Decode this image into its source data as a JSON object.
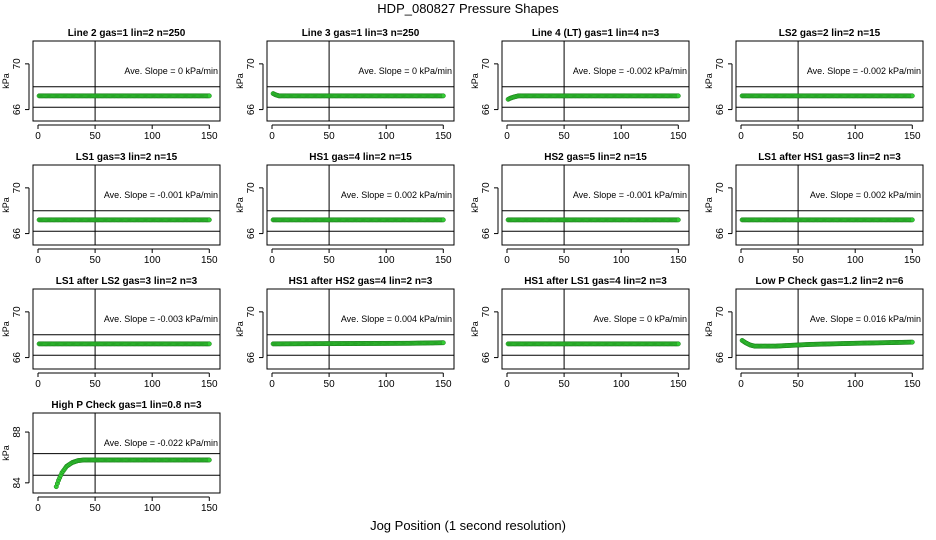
{
  "figure": {
    "title": "HDP_080827  Pressure Shapes",
    "xlabel": "Jog Position (1 second resolution)"
  },
  "chart_data": [
    {
      "type": "scatter",
      "title": "Line 2 gas=1 lin=2 n=250",
      "slope_label": "Ave. Slope =",
      "slope_value": "0",
      "slope_unit": "kPa/min",
      "ylabel": "kPa",
      "xlim": [
        0,
        155
      ],
      "ylim": [
        65,
        72
      ],
      "xticks": [
        "0",
        "50",
        "100",
        "150"
      ],
      "yticks": [
        "66",
        "70"
      ],
      "hlines": [
        68.0,
        66.2
      ],
      "vline": 50,
      "color": "#33cc33",
      "points": [
        [
          1,
          67.2
        ],
        [
          150,
          67.2
        ]
      ]
    },
    {
      "type": "scatter",
      "title": "Line 3 gas=1 lin=3 n=250",
      "slope_label": "Ave. Slope =",
      "slope_value": "0",
      "slope_unit": "kPa/min",
      "ylabel": "kPa",
      "xlim": [
        0,
        155
      ],
      "ylim": [
        65,
        72
      ],
      "xticks": [
        "0",
        "50",
        "100",
        "150"
      ],
      "yticks": [
        "66",
        "70"
      ],
      "hlines": [
        68.0,
        66.2
      ],
      "vline": 50,
      "color": "#33cc33",
      "points": [
        [
          1,
          67.4
        ],
        [
          3,
          67.3
        ],
        [
          6,
          67.2
        ],
        [
          150,
          67.2
        ]
      ]
    },
    {
      "type": "scatter",
      "title": "Line 4 (LT) gas=1 lin=4 n=3",
      "slope_label": "Ave. Slope =",
      "slope_value": "-0.002",
      "slope_unit": "kPa/min",
      "ylabel": "kPa",
      "xlim": [
        0,
        155
      ],
      "ylim": [
        65,
        72
      ],
      "xticks": [
        "0",
        "50",
        "100",
        "150"
      ],
      "yticks": [
        "66",
        "70"
      ],
      "hlines": [
        68.0,
        66.2
      ],
      "vline": 50,
      "color": "#33cc33",
      "points": [
        [
          1,
          66.9
        ],
        [
          3,
          67.0
        ],
        [
          6,
          67.1
        ],
        [
          10,
          67.2
        ],
        [
          150,
          67.2
        ]
      ]
    },
    {
      "type": "scatter",
      "title": "LS2 gas=2 lin=2 n=15",
      "slope_label": "Ave. Slope =",
      "slope_value": "-0.002",
      "slope_unit": "kPa/min",
      "ylabel": "kPa",
      "xlim": [
        0,
        155
      ],
      "ylim": [
        65,
        72
      ],
      "xticks": [
        "0",
        "50",
        "100",
        "150"
      ],
      "yticks": [
        "66",
        "70"
      ],
      "hlines": [
        68.0,
        66.2
      ],
      "vline": 50,
      "color": "#33cc33",
      "points": [
        [
          1,
          67.2
        ],
        [
          150,
          67.2
        ]
      ]
    },
    {
      "type": "scatter",
      "title": "LS1 gas=3 lin=2 n=15",
      "slope_label": "Ave. Slope =",
      "slope_value": "-0.001",
      "slope_unit": "kPa/min",
      "ylabel": "kPa",
      "xlim": [
        0,
        155
      ],
      "ylim": [
        65,
        72
      ],
      "xticks": [
        "0",
        "50",
        "100",
        "150"
      ],
      "yticks": [
        "66",
        "70"
      ],
      "hlines": [
        68.0,
        66.2
      ],
      "vline": 50,
      "color": "#33cc33",
      "points": [
        [
          1,
          67.2
        ],
        [
          150,
          67.2
        ]
      ]
    },
    {
      "type": "scatter",
      "title": "HS1 gas=4 lin=2 n=15",
      "slope_label": "Ave. Slope =",
      "slope_value": "0.002",
      "slope_unit": "kPa/min",
      "ylabel": "kPa",
      "xlim": [
        0,
        155
      ],
      "ylim": [
        65,
        72
      ],
      "xticks": [
        "0",
        "50",
        "100",
        "150"
      ],
      "yticks": [
        "66",
        "70"
      ],
      "hlines": [
        68.0,
        66.2
      ],
      "vline": 50,
      "color": "#33cc33",
      "points": [
        [
          1,
          67.2
        ],
        [
          150,
          67.2
        ]
      ]
    },
    {
      "type": "scatter",
      "title": "HS2 gas=5 lin=2 n=15",
      "slope_label": "Ave. Slope =",
      "slope_value": "-0.001",
      "slope_unit": "kPa/min",
      "ylabel": "kPa",
      "xlim": [
        0,
        155
      ],
      "ylim": [
        65,
        72
      ],
      "xticks": [
        "0",
        "50",
        "100",
        "150"
      ],
      "yticks": [
        "66",
        "70"
      ],
      "hlines": [
        68.0,
        66.2
      ],
      "vline": 50,
      "color": "#33cc33",
      "points": [
        [
          1,
          67.2
        ],
        [
          150,
          67.2
        ]
      ]
    },
    {
      "type": "scatter",
      "title": "LS1 after HS1 gas=3 lin=2 n=3",
      "slope_label": "Ave. Slope =",
      "slope_value": "0.002",
      "slope_unit": "kPa/min",
      "ylabel": "kPa",
      "xlim": [
        0,
        155
      ],
      "ylim": [
        65,
        72
      ],
      "xticks": [
        "0",
        "50",
        "100",
        "150"
      ],
      "yticks": [
        "66",
        "70"
      ],
      "hlines": [
        68.0,
        66.2
      ],
      "vline": 50,
      "color": "#33cc33",
      "points": [
        [
          1,
          67.2
        ],
        [
          150,
          67.2
        ]
      ]
    },
    {
      "type": "scatter",
      "title": "LS1 after LS2 gas=3 lin=2 n=3",
      "slope_label": "Ave. Slope =",
      "slope_value": "-0.003",
      "slope_unit": "kPa/min",
      "ylabel": "kPa",
      "xlim": [
        0,
        155
      ],
      "ylim": [
        65,
        72
      ],
      "xticks": [
        "0",
        "50",
        "100",
        "150"
      ],
      "yticks": [
        "66",
        "70"
      ],
      "hlines": [
        68.0,
        66.2
      ],
      "vline": 50,
      "color": "#33cc33",
      "points": [
        [
          1,
          67.2
        ],
        [
          150,
          67.2
        ]
      ]
    },
    {
      "type": "scatter",
      "title": "HS1 after HS2 gas=4 lin=2 n=3",
      "slope_label": "Ave. Slope =",
      "slope_value": "0.004",
      "slope_unit": "kPa/min",
      "ylabel": "kPa",
      "xlim": [
        0,
        155
      ],
      "ylim": [
        65,
        72
      ],
      "xticks": [
        "0",
        "50",
        "100",
        "150"
      ],
      "yticks": [
        "66",
        "70"
      ],
      "hlines": [
        68.0,
        66.2
      ],
      "vline": 50,
      "color": "#33cc33",
      "points": [
        [
          1,
          67.2
        ],
        [
          120,
          67.25
        ],
        [
          150,
          67.3
        ]
      ]
    },
    {
      "type": "scatter",
      "title": "HS1 after LS1 gas=4 lin=2 n=3",
      "slope_label": "Ave. Slope =",
      "slope_value": "0",
      "slope_unit": "kPa/min",
      "ylabel": "kPa",
      "xlim": [
        0,
        155
      ],
      "ylim": [
        65,
        72
      ],
      "xticks": [
        "0",
        "50",
        "100",
        "150"
      ],
      "yticks": [
        "66",
        "70"
      ],
      "hlines": [
        68.0,
        66.2
      ],
      "vline": 50,
      "color": "#33cc33",
      "points": [
        [
          1,
          67.2
        ],
        [
          150,
          67.2
        ]
      ]
    },
    {
      "type": "scatter",
      "title": "Low P Check gas=1.2 lin=2 n=6",
      "slope_label": "Ave. Slope =",
      "slope_value": "0.016",
      "slope_unit": "kPa/min",
      "ylabel": "kPa",
      "xlim": [
        0,
        155
      ],
      "ylim": [
        65,
        72
      ],
      "xticks": [
        "0",
        "50",
        "100",
        "150"
      ],
      "yticks": [
        "66",
        "70"
      ],
      "hlines": [
        68.0,
        66.2
      ],
      "vline": 50,
      "color": "#33cc33",
      "points": [
        [
          1,
          67.5
        ],
        [
          4,
          67.3
        ],
        [
          8,
          67.1
        ],
        [
          12,
          67.0
        ],
        [
          30,
          67.0
        ],
        [
          60,
          67.15
        ],
        [
          100,
          67.25
        ],
        [
          150,
          67.35
        ]
      ]
    },
    {
      "type": "scatter",
      "title": "High P Check gas=1 lin=0.8 n=3",
      "slope_label": "Ave. Slope =",
      "slope_value": "-0.022",
      "slope_unit": "kPa/min",
      "ylabel": "kPa",
      "xlim": [
        0,
        155
      ],
      "ylim": [
        83.2,
        89.5
      ],
      "xticks": [
        "0",
        "50",
        "100",
        "150"
      ],
      "yticks": [
        "84",
        "88"
      ],
      "hlines": [
        86.3,
        84.6
      ],
      "vline": 50,
      "color": "#33cc33",
      "points": [
        [
          16,
          83.7
        ],
        [
          18,
          84.2
        ],
        [
          21,
          84.8
        ],
        [
          25,
          85.3
        ],
        [
          30,
          85.6
        ],
        [
          35,
          85.75
        ],
        [
          40,
          85.8
        ],
        [
          150,
          85.8
        ]
      ]
    }
  ]
}
